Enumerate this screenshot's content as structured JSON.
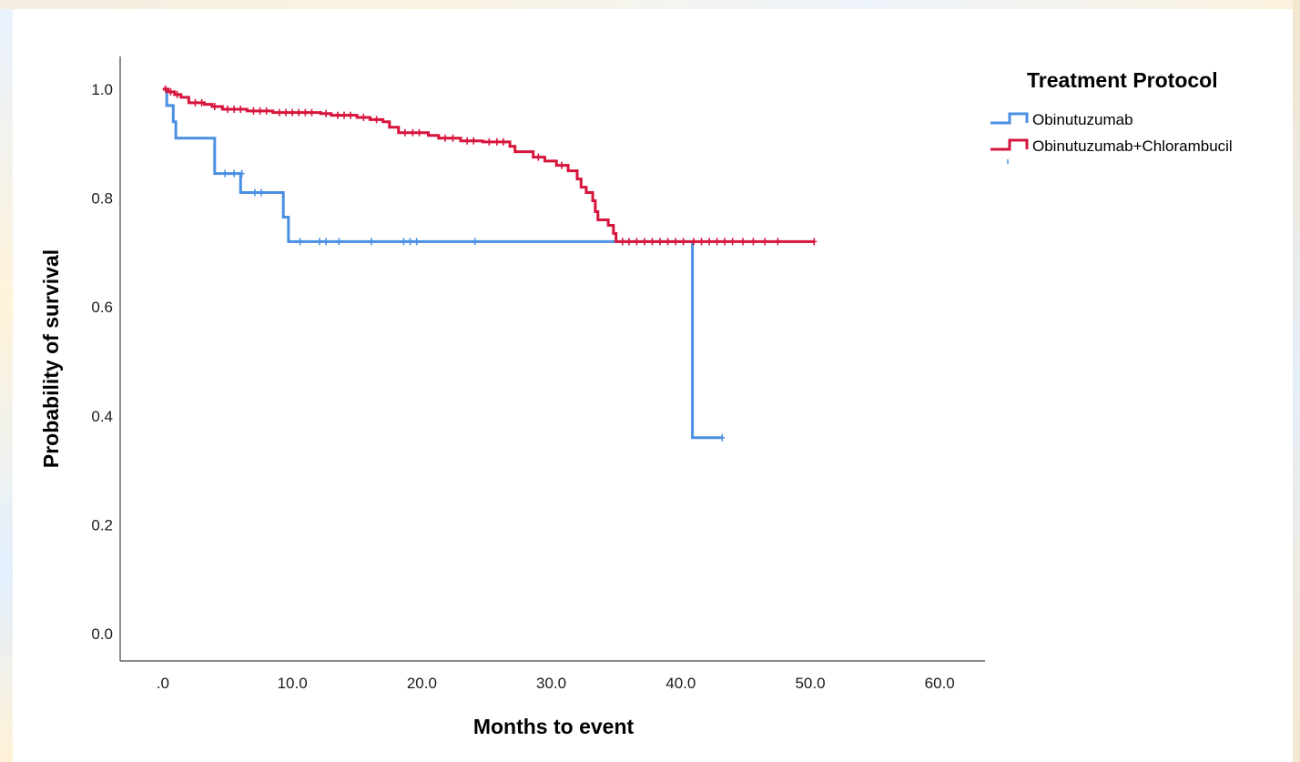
{
  "chart_data": {
    "type": "line",
    "title": "",
    "xlabel": "Months to event",
    "ylabel": "Probability of survival",
    "xlim": [
      -3.3,
      63.5
    ],
    "ylim": [
      -0.05,
      1.06
    ],
    "x_ticks": [
      ".0",
      "10.0",
      "20.0",
      "30.0",
      "40.0",
      "50.0",
      "60.0"
    ],
    "x_tick_values": [
      0,
      10,
      20,
      30,
      40,
      50,
      60
    ],
    "y_ticks": [
      "0.0",
      "0.2",
      "0.4",
      "0.6",
      "0.8",
      "1.0"
    ],
    "y_tick_values": [
      0,
      0.2,
      0.4,
      0.6,
      0.8,
      1.0
    ],
    "grid": false,
    "legend": {
      "title": "Treatment Protocol",
      "placement": "top-right"
    },
    "series": [
      {
        "name": "Obinutuzumab",
        "color": "#4a90e2",
        "step": [
          [
            0,
            1.0
          ],
          [
            0.3,
            0.97
          ],
          [
            0.8,
            0.94
          ],
          [
            1.0,
            0.91
          ],
          [
            4.0,
            0.845
          ],
          [
            6.0,
            0.81
          ],
          [
            9.3,
            0.765
          ],
          [
            9.7,
            0.72
          ],
          [
            40.9,
            0.36
          ],
          [
            43.2,
            0.36
          ]
        ],
        "censored": [
          [
            4.8,
            0.845
          ],
          [
            5.5,
            0.845
          ],
          [
            6.1,
            0.845
          ],
          [
            7.1,
            0.81
          ],
          [
            7.6,
            0.81
          ],
          [
            10.6,
            0.72
          ],
          [
            12.1,
            0.72
          ],
          [
            12.6,
            0.72
          ],
          [
            13.6,
            0.72
          ],
          [
            16.1,
            0.72
          ],
          [
            18.6,
            0.72
          ],
          [
            19.1,
            0.72
          ],
          [
            19.6,
            0.72
          ],
          [
            24.1,
            0.72
          ],
          [
            43.2,
            0.36
          ]
        ]
      },
      {
        "name": "Obinutuzumab+Chlorambucil",
        "color": "#d7143c",
        "step": [
          [
            0,
            1.0
          ],
          [
            0.4,
            0.995
          ],
          [
            0.9,
            0.99
          ],
          [
            1.4,
            0.985
          ],
          [
            2.0,
            0.975
          ],
          [
            3.2,
            0.972
          ],
          [
            3.8,
            0.968
          ],
          [
            4.6,
            0.963
          ],
          [
            6.5,
            0.96
          ],
          [
            8.5,
            0.957
          ],
          [
            12.2,
            0.955
          ],
          [
            13.0,
            0.952
          ],
          [
            15.0,
            0.948
          ],
          [
            16.0,
            0.944
          ],
          [
            17.0,
            0.94
          ],
          [
            17.5,
            0.93
          ],
          [
            18.2,
            0.92
          ],
          [
            20.5,
            0.915
          ],
          [
            21.3,
            0.91
          ],
          [
            23.0,
            0.905
          ],
          [
            24.7,
            0.903
          ],
          [
            26.8,
            0.895
          ],
          [
            27.2,
            0.885
          ],
          [
            28.6,
            0.875
          ],
          [
            29.5,
            0.868
          ],
          [
            30.4,
            0.86
          ],
          [
            31.3,
            0.85
          ],
          [
            32.0,
            0.835
          ],
          [
            32.3,
            0.82
          ],
          [
            32.7,
            0.81
          ],
          [
            33.2,
            0.795
          ],
          [
            33.4,
            0.775
          ],
          [
            33.6,
            0.76
          ],
          [
            34.4,
            0.75
          ],
          [
            34.8,
            0.735
          ],
          [
            35.0,
            0.72
          ],
          [
            50.3,
            0.72
          ]
        ],
        "censored": [
          [
            0.2,
            1.0
          ],
          [
            0.6,
            0.995
          ],
          [
            1.1,
            0.99
          ],
          [
            2.5,
            0.975
          ],
          [
            3.0,
            0.975
          ],
          [
            4.0,
            0.968
          ],
          [
            5.0,
            0.963
          ],
          [
            5.5,
            0.963
          ],
          [
            6.0,
            0.963
          ],
          [
            7.0,
            0.96
          ],
          [
            7.5,
            0.96
          ],
          [
            8.0,
            0.96
          ],
          [
            9.0,
            0.957
          ],
          [
            9.5,
            0.957
          ],
          [
            10.0,
            0.957
          ],
          [
            10.5,
            0.957
          ],
          [
            11.0,
            0.957
          ],
          [
            11.5,
            0.957
          ],
          [
            12.6,
            0.955
          ],
          [
            13.5,
            0.952
          ],
          [
            14.0,
            0.952
          ],
          [
            14.5,
            0.952
          ],
          [
            15.5,
            0.948
          ],
          [
            16.5,
            0.944
          ],
          [
            18.7,
            0.92
          ],
          [
            19.3,
            0.92
          ],
          [
            19.8,
            0.92
          ],
          [
            21.8,
            0.91
          ],
          [
            22.4,
            0.91
          ],
          [
            23.5,
            0.905
          ],
          [
            24.0,
            0.905
          ],
          [
            25.2,
            0.903
          ],
          [
            25.8,
            0.903
          ],
          [
            26.3,
            0.903
          ],
          [
            29.0,
            0.875
          ],
          [
            30.8,
            0.86
          ],
          [
            35.5,
            0.72
          ],
          [
            36.0,
            0.72
          ],
          [
            36.6,
            0.72
          ],
          [
            37.2,
            0.72
          ],
          [
            37.8,
            0.72
          ],
          [
            38.4,
            0.72
          ],
          [
            39.0,
            0.72
          ],
          [
            39.6,
            0.72
          ],
          [
            40.2,
            0.72
          ],
          [
            41.0,
            0.72
          ],
          [
            41.6,
            0.72
          ],
          [
            42.2,
            0.72
          ],
          [
            42.8,
            0.72
          ],
          [
            43.4,
            0.72
          ],
          [
            44.0,
            0.72
          ],
          [
            44.8,
            0.72
          ],
          [
            45.6,
            0.72
          ],
          [
            46.5,
            0.72
          ],
          [
            47.5,
            0.72
          ],
          [
            50.3,
            0.72
          ]
        ]
      }
    ]
  }
}
